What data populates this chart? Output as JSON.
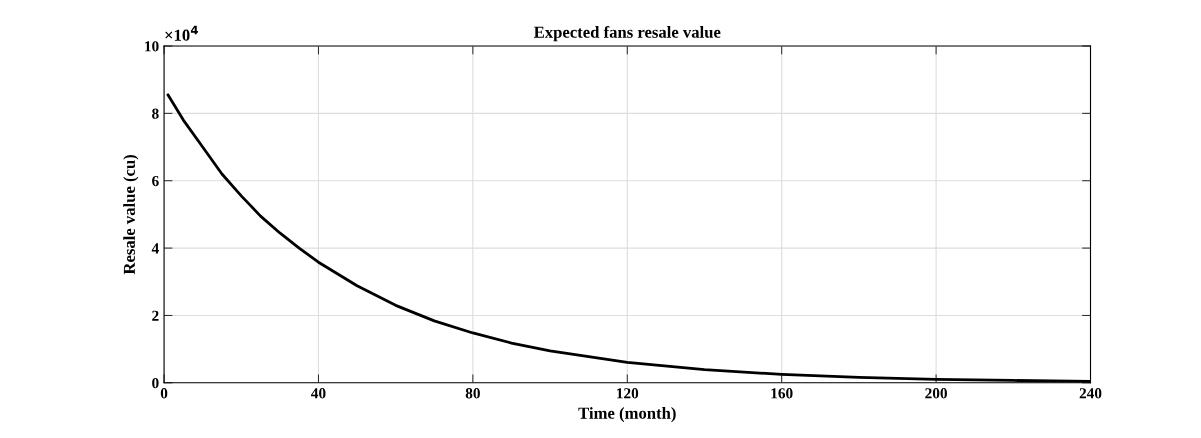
{
  "chart_data": {
    "type": "line",
    "title": "Expected fans resale value",
    "xlabel": "Time (month)",
    "ylabel": "Resale value (cu)",
    "x": [
      1,
      5,
      10,
      15,
      20,
      25,
      30,
      35,
      40,
      50,
      60,
      70,
      80,
      90,
      100,
      120,
      140,
      160,
      180,
      200,
      220,
      240
    ],
    "series": [
      {
        "color": "#000000",
        "values": [
          8.55,
          7.8,
          7.0,
          6.2,
          5.55,
          4.95,
          4.45,
          4.0,
          3.58,
          2.88,
          2.3,
          1.84,
          1.48,
          1.18,
          0.95,
          0.61,
          0.39,
          0.25,
          0.16,
          0.1,
          0.07,
          0.04
        ]
      }
    ],
    "xlim": [
      0,
      240
    ],
    "xticks": [
      0,
      40,
      80,
      120,
      160,
      200,
      240
    ],
    "ylim": [
      0,
      10
    ],
    "yticks": [
      0,
      2,
      4,
      6,
      8,
      10
    ],
    "annotations": [
      "×10$^{4}$"
    ],
    "grid": true,
    "marker": "none",
    "line_style": "solid"
  }
}
